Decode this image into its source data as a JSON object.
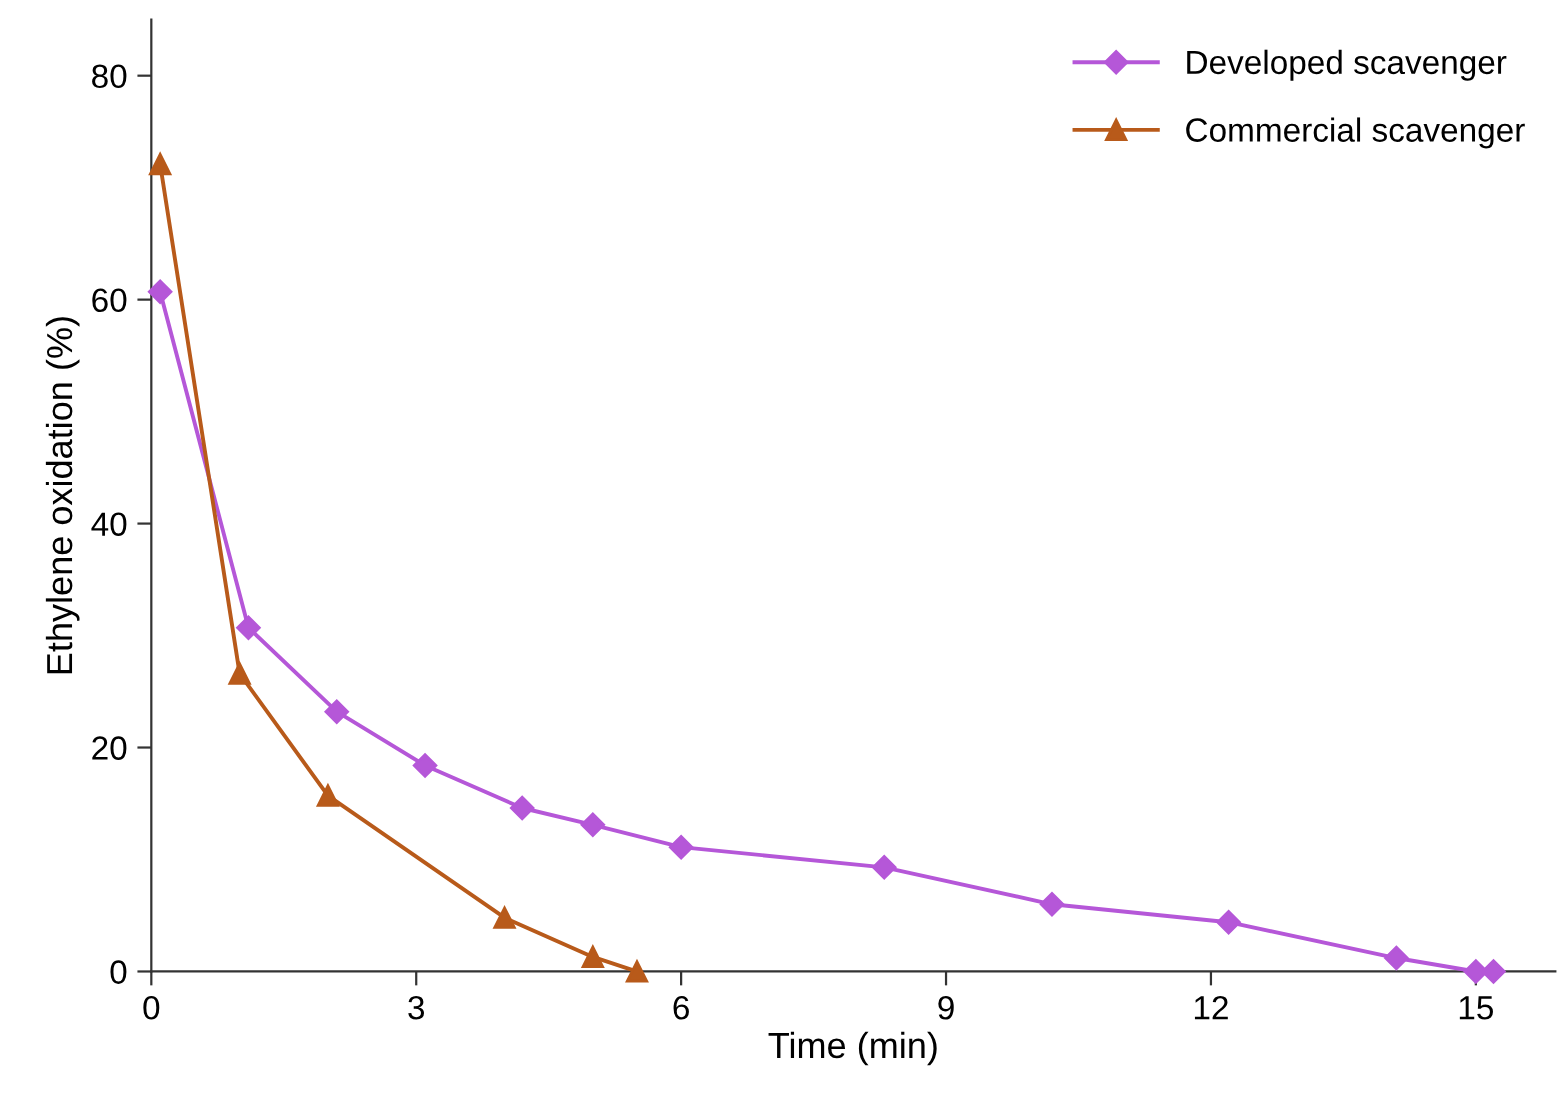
{
  "chart_data": {
    "type": "line",
    "xlabel": "Time (min)",
    "ylabel": "Ethylene oxidation (%)",
    "xlim": [
      0,
      15.9
    ],
    "xticks": [
      0,
      3,
      6,
      9,
      12,
      15
    ],
    "ylim": [
      0,
      85
    ],
    "yticks": [
      0,
      20,
      40,
      60,
      80
    ],
    "grid": false,
    "legend": "top right",
    "series": [
      {
        "name": "Developed scavenger",
        "color": "#b557d8",
        "marker": "diamond",
        "x": [
          0.1,
          1.1,
          2.1,
          3.1,
          4.2,
          5.0,
          6.0,
          8.3,
          10.2,
          12.2,
          14.1,
          15.0,
          15.2
        ],
        "values": [
          60.7,
          30.7,
          23.2,
          18.4,
          14.6,
          13.1,
          11.1,
          9.3,
          6.0,
          4.4,
          1.2,
          0,
          0
        ]
      },
      {
        "name": "Commercial scavenger",
        "color": "#b85a1a",
        "marker": "triangle",
        "x": [
          0.1,
          1.0,
          2.0,
          4.0,
          5.0,
          5.5
        ],
        "values": [
          72.1,
          26.6,
          15.7,
          4.8,
          1.3,
          0
        ]
      }
    ]
  }
}
